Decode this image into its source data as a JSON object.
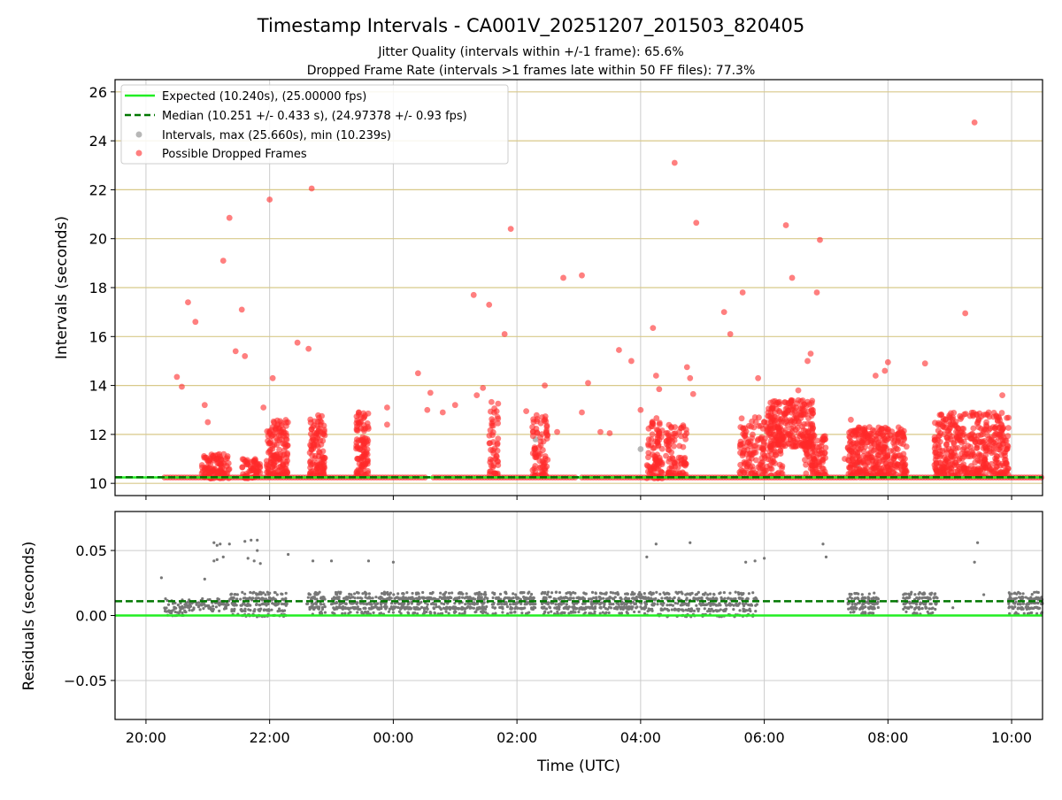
{
  "figure": {
    "title": "Timestamp Intervals - CA001V_20251207_201503_820405",
    "subtitle_jitter": "Jitter Quality (intervals within +/-1 frame): 65.6%",
    "subtitle_dropped": "Dropped Frame Rate (intervals >1 frames late within 50 FF files): 77.3%",
    "xlabel": "Time (UTC)"
  },
  "colors": {
    "expected": "#22ee22",
    "median": "#007700",
    "intervals": "#999999",
    "dropped": "#ff2a2a",
    "residuals": "#777777",
    "hgrid_top": "#d8c98a",
    "grid": "#cccccc"
  },
  "chart_data": [
    {
      "type": "scatter",
      "ylabel": "Intervals (seconds)",
      "ylim": [
        9.5,
        26.5
      ],
      "yticks": [
        "10",
        "12",
        "14",
        "16",
        "18",
        "20",
        "22",
        "24",
        "26"
      ],
      "xlim_hours": [
        19.5,
        34.5
      ],
      "xticks": [
        "20:00",
        "22:00",
        "00:00",
        "02:00",
        "04:00",
        "06:00",
        "08:00",
        "10:00"
      ],
      "legend_position": "top-left",
      "expected_line": {
        "value": 10.24
      },
      "median_line": {
        "value": 10.251
      },
      "legend": {
        "expected": "Expected (10.240s), (25.00000 fps)",
        "median": "Median (10.251 +/- 0.433 s), (24.97378 +/- 0.93 fps)",
        "intervals": "Intervals, max (25.660s), min (10.239s)",
        "dropped": "Possible Dropped Frames"
      },
      "baseline_segments": [
        [
          20.3,
          24.55
        ],
        [
          24.65,
          26.95
        ],
        [
          27.05,
          31.5
        ],
        [
          31.55,
          34.5
        ]
      ],
      "dropped_clusters": [
        {
          "x": [
            20.9,
            21.35
          ],
          "y": [
            10.2,
            11.2
          ],
          "n": 110
        },
        {
          "x": [
            21.55,
            21.85
          ],
          "y": [
            10.2,
            11.0
          ],
          "n": 60
        },
        {
          "x": [
            21.95,
            22.3
          ],
          "y": [
            10.3,
            12.6
          ],
          "n": 150
        },
        {
          "x": [
            22.65,
            22.9
          ],
          "y": [
            10.3,
            12.9
          ],
          "n": 110
        },
        {
          "x": [
            23.4,
            23.6
          ],
          "y": [
            10.3,
            13.0
          ],
          "n": 100
        },
        {
          "x": [
            25.55,
            25.7
          ],
          "y": [
            10.3,
            13.5
          ],
          "n": 50
        },
        {
          "x": [
            26.25,
            26.5
          ],
          "y": [
            10.3,
            12.8
          ],
          "n": 80
        },
        {
          "x": [
            28.1,
            28.35
          ],
          "y": [
            10.2,
            12.8
          ],
          "n": 90
        },
        {
          "x": [
            28.4,
            28.75
          ],
          "y": [
            10.3,
            12.4
          ],
          "n": 90
        },
        {
          "x": [
            29.6,
            30.3
          ],
          "y": [
            10.3,
            12.7
          ],
          "n": 170
        },
        {
          "x": [
            30.05,
            30.8
          ],
          "y": [
            11.5,
            13.4
          ],
          "n": 240
        },
        {
          "x": [
            30.65,
            31.0
          ],
          "y": [
            10.3,
            12.0
          ],
          "n": 90
        },
        {
          "x": [
            31.35,
            32.3
          ],
          "y": [
            10.3,
            12.3
          ],
          "n": 340
        },
        {
          "x": [
            32.75,
            33.95
          ],
          "y": [
            10.3,
            12.9
          ],
          "n": 440
        }
      ],
      "dropped_outliers": [
        [
          20.5,
          14.35
        ],
        [
          20.58,
          13.95
        ],
        [
          20.68,
          17.4
        ],
        [
          20.8,
          16.6
        ],
        [
          20.95,
          13.2
        ],
        [
          21.0,
          12.5
        ],
        [
          21.25,
          19.1
        ],
        [
          21.35,
          20.85
        ],
        [
          21.45,
          15.4
        ],
        [
          21.55,
          17.1
        ],
        [
          21.6,
          15.2
        ],
        [
          21.9,
          13.1
        ],
        [
          22.0,
          21.6
        ],
        [
          22.05,
          14.3
        ],
        [
          22.45,
          15.75
        ],
        [
          22.63,
          15.5
        ],
        [
          22.68,
          22.05
        ],
        [
          22.7,
          12.3
        ],
        [
          23.9,
          13.1
        ],
        [
          23.9,
          12.4
        ],
        [
          24.4,
          14.5
        ],
        [
          24.55,
          13.0
        ],
        [
          24.6,
          13.7
        ],
        [
          24.8,
          12.9
        ],
        [
          25.0,
          13.2
        ],
        [
          25.3,
          17.7
        ],
        [
          25.35,
          13.6
        ],
        [
          25.45,
          13.9
        ],
        [
          25.55,
          17.3
        ],
        [
          25.8,
          16.1
        ],
        [
          25.9,
          20.4
        ],
        [
          26.15,
          12.95
        ],
        [
          26.25,
          12.3
        ],
        [
          26.45,
          14.0
        ],
        [
          26.65,
          12.1
        ],
        [
          26.75,
          18.4
        ],
        [
          27.05,
          18.5
        ],
        [
          27.05,
          12.9
        ],
        [
          27.15,
          14.1
        ],
        [
          27.35,
          12.1
        ],
        [
          27.5,
          12.05
        ],
        [
          27.65,
          15.45
        ],
        [
          27.85,
          15.0
        ],
        [
          28.0,
          13.0
        ],
        [
          28.2,
          16.35
        ],
        [
          28.25,
          14.4
        ],
        [
          28.3,
          13.85
        ],
        [
          28.55,
          23.1
        ],
        [
          28.75,
          14.75
        ],
        [
          28.8,
          14.3
        ],
        [
          28.9,
          20.65
        ],
        [
          28.85,
          13.65
        ],
        [
          29.35,
          17.0
        ],
        [
          29.45,
          16.1
        ],
        [
          29.65,
          17.8
        ],
        [
          29.85,
          12.7
        ],
        [
          29.9,
          14.3
        ],
        [
          30.35,
          20.55
        ],
        [
          30.45,
          18.4
        ],
        [
          30.55,
          13.8
        ],
        [
          30.7,
          15.0
        ],
        [
          30.75,
          15.3
        ],
        [
          30.85,
          17.8
        ],
        [
          30.9,
          19.95
        ],
        [
          31.3,
          11.0
        ],
        [
          31.4,
          12.6
        ],
        [
          31.7,
          12.3
        ],
        [
          31.8,
          14.4
        ],
        [
          31.95,
          14.6
        ],
        [
          32.0,
          14.95
        ],
        [
          32.15,
          12.0
        ],
        [
          32.3,
          11.5
        ],
        [
          32.6,
          14.9
        ],
        [
          33.25,
          16.95
        ],
        [
          33.4,
          24.75
        ],
        [
          33.55,
          12.8
        ],
        [
          33.7,
          12.3
        ],
        [
          33.85,
          13.6
        ]
      ],
      "interval_outliers": [
        [
          26.3,
          11.8
        ],
        [
          28.0,
          11.4
        ],
        [
          31.5,
          10.75
        ],
        [
          31.6,
          10.5
        ]
      ]
    },
    {
      "type": "scatter",
      "ylabel": "Residuals (seconds)",
      "ylim": [
        -0.08,
        0.08
      ],
      "yticks": [
        "−0.05",
        "0.00",
        "0.05"
      ],
      "expected_line": {
        "value": 0.0
      },
      "median_line": {
        "value": 0.011
      },
      "residual_bands": [
        {
          "x": [
            20.3,
            20.65
          ],
          "y": [
            0.0,
            0.012
          ],
          "n": 50
        },
        {
          "x": [
            20.65,
            21.35
          ],
          "y": [
            0.004,
            0.012
          ],
          "n": 80
        },
        {
          "x": [
            21.35,
            22.3
          ],
          "y": [
            0.0,
            0.017
          ],
          "n": 200
        },
        {
          "x": [
            22.6,
            22.9
          ],
          "y": [
            0.002,
            0.017
          ],
          "n": 70
        },
        {
          "x": [
            23.0,
            25.55
          ],
          "y": [
            0.002,
            0.017
          ],
          "n": 560
        },
        {
          "x": [
            25.6,
            26.3
          ],
          "y": [
            0.002,
            0.017
          ],
          "n": 150
        },
        {
          "x": [
            26.4,
            28.1
          ],
          "y": [
            0.002,
            0.017
          ],
          "n": 380
        },
        {
          "x": [
            28.1,
            29.9
          ],
          "y": [
            0.0,
            0.017
          ],
          "n": 320
        },
        {
          "x": [
            31.35,
            31.85
          ],
          "y": [
            0.002,
            0.017
          ],
          "n": 120
        },
        {
          "x": [
            32.25,
            32.8
          ],
          "y": [
            0.002,
            0.017
          ],
          "n": 120
        },
        {
          "x": [
            33.95,
            34.5
          ],
          "y": [
            0.002,
            0.017
          ],
          "n": 130
        }
      ],
      "residual_outliers": [
        [
          20.25,
          0.029
        ],
        [
          20.95,
          0.028
        ],
        [
          21.1,
          0.056
        ],
        [
          21.15,
          0.054
        ],
        [
          21.2,
          0.055
        ],
        [
          21.25,
          0.045
        ],
        [
          21.1,
          0.042
        ],
        [
          21.15,
          0.043
        ],
        [
          21.35,
          0.055
        ],
        [
          21.6,
          0.057
        ],
        [
          21.7,
          0.058
        ],
        [
          21.8,
          0.058
        ],
        [
          21.65,
          0.044
        ],
        [
          21.75,
          0.042
        ],
        [
          21.85,
          0.04
        ],
        [
          21.8,
          0.05
        ],
        [
          22.3,
          0.047
        ],
        [
          22.7,
          0.042
        ],
        [
          23.0,
          0.042
        ],
        [
          23.6,
          0.042
        ],
        [
          24.0,
          0.041
        ],
        [
          28.1,
          0.045
        ],
        [
          28.25,
          0.055
        ],
        [
          28.8,
          0.056
        ],
        [
          29.7,
          0.041
        ],
        [
          29.85,
          0.042
        ],
        [
          30.0,
          0.044
        ],
        [
          30.95,
          0.055
        ],
        [
          31.0,
          0.045
        ],
        [
          32.15,
          0.011
        ],
        [
          33.05,
          0.006
        ],
        [
          33.4,
          0.041
        ],
        [
          33.45,
          0.056
        ],
        [
          33.55,
          0.016
        ]
      ]
    }
  ]
}
